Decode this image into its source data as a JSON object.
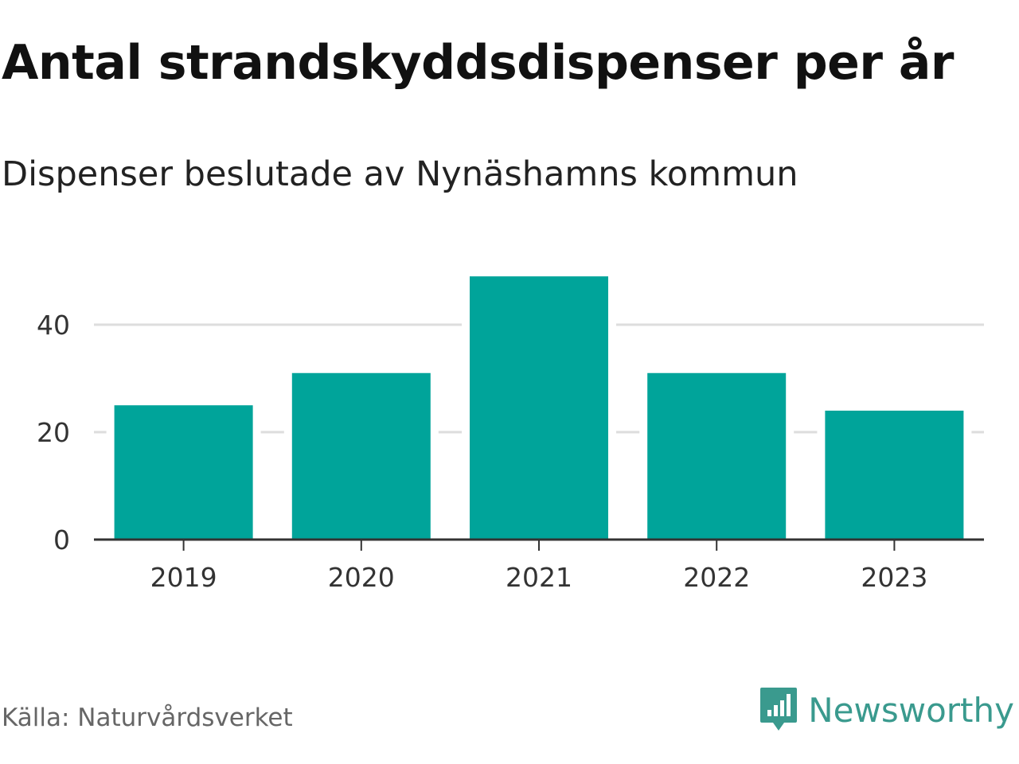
{
  "title": "Antal strandskyddsdispenser per år",
  "subtitle": "Dispenser beslutade av Nynäshamns kommun",
  "source": "Källa: Naturvårdsverket",
  "brand": {
    "name": "Newsworthy",
    "icon": "newsworthy-logo-icon"
  },
  "colors": {
    "bar": "#00a49a",
    "gridline": "#dddddd",
    "axis": "#333333",
    "brand": "#3a9a8e"
  },
  "chart_data": {
    "type": "bar",
    "categories": [
      "2019",
      "2020",
      "2021",
      "2022",
      "2023"
    ],
    "values": [
      25,
      31,
      49,
      31,
      24
    ],
    "yticks": [
      0,
      20,
      40
    ],
    "ylim": [
      0,
      50
    ],
    "xlabel": "",
    "ylabel": "",
    "grid": true
  }
}
